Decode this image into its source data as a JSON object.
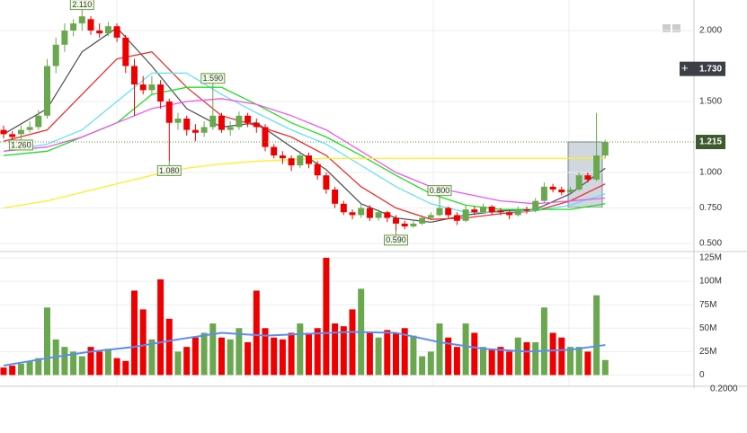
{
  "chart_data": {
    "type": "candlestick",
    "ylim": [
      0.456,
      2.215
    ],
    "yticks": [
      {
        "value": 0.5,
        "label": "0.500"
      },
      {
        "value": 0.75,
        "label": "0.750"
      },
      {
        "value": 1,
        "label": "1.000"
      },
      {
        "value": 1.5,
        "label": "1.500"
      },
      {
        "value": 2,
        "label": "2.000"
      }
    ],
    "grid": true,
    "up_color": "#6aa84f",
    "down_color": "#ee0000",
    "candles": [
      [
        1.3,
        1.33,
        1.24,
        1.27
      ],
      [
        1.27,
        1.29,
        1.22,
        1.25
      ],
      [
        1.27,
        1.33,
        1.26,
        1.3
      ],
      [
        1.3,
        1.36,
        1.28,
        1.32
      ],
      [
        1.32,
        1.44,
        1.3,
        1.4
      ],
      [
        1.4,
        1.8,
        1.38,
        1.75
      ],
      [
        1.75,
        1.95,
        1.7,
        1.9
      ],
      [
        1.9,
        2.05,
        1.85,
        2.0
      ],
      [
        2.0,
        2.08,
        1.96,
        2.05
      ],
      [
        2.05,
        2.11,
        2.0,
        2.1
      ],
      [
        2.08,
        2.1,
        1.97,
        2.0
      ],
      [
        2.0,
        2.05,
        1.95,
        1.98
      ],
      [
        1.98,
        2.06,
        1.96,
        2.03
      ],
      [
        2.03,
        2.05,
        1.92,
        1.95
      ],
      [
        1.95,
        1.97,
        1.7,
        1.75
      ],
      [
        1.75,
        1.8,
        1.4,
        1.62
      ],
      [
        1.62,
        1.68,
        1.55,
        1.58
      ],
      [
        1.58,
        1.68,
        1.55,
        1.62
      ],
      [
        1.62,
        1.65,
        1.45,
        1.5
      ],
      [
        1.5,
        1.52,
        1.08,
        1.35
      ],
      [
        1.35,
        1.42,
        1.3,
        1.38
      ],
      [
        1.38,
        1.4,
        1.26,
        1.3
      ],
      [
        1.3,
        1.34,
        1.22,
        1.28
      ],
      [
        1.28,
        1.36,
        1.25,
        1.32
      ],
      [
        1.32,
        1.59,
        1.3,
        1.4
      ],
      [
        1.4,
        1.42,
        1.28,
        1.3
      ],
      [
        1.3,
        1.36,
        1.26,
        1.32
      ],
      [
        1.32,
        1.43,
        1.3,
        1.4
      ],
      [
        1.4,
        1.42,
        1.32,
        1.35
      ],
      [
        1.35,
        1.38,
        1.28,
        1.32
      ],
      [
        1.32,
        1.34,
        1.15,
        1.18
      ],
      [
        1.18,
        1.2,
        1.1,
        1.12
      ],
      [
        1.12,
        1.15,
        1.06,
        1.1
      ],
      [
        1.1,
        1.12,
        1.01,
        1.05
      ],
      [
        1.05,
        1.15,
        1.03,
        1.12
      ],
      [
        1.12,
        1.14,
        1.03,
        1.06
      ],
      [
        1.06,
        1.08,
        0.95,
        0.98
      ],
      [
        0.98,
        1.0,
        0.85,
        0.88
      ],
      [
        0.88,
        0.9,
        0.75,
        0.78
      ],
      [
        0.78,
        0.8,
        0.7,
        0.72
      ],
      [
        0.72,
        0.74,
        0.67,
        0.7
      ],
      [
        0.7,
        0.78,
        0.68,
        0.75
      ],
      [
        0.75,
        0.77,
        0.66,
        0.68
      ],
      [
        0.68,
        0.74,
        0.66,
        0.72
      ],
      [
        0.72,
        0.73,
        0.65,
        0.68
      ],
      [
        0.68,
        0.7,
        0.59,
        0.64
      ],
      [
        0.64,
        0.66,
        0.6,
        0.62
      ],
      [
        0.62,
        0.66,
        0.61,
        0.64
      ],
      [
        0.64,
        0.7,
        0.63,
        0.68
      ],
      [
        0.68,
        0.72,
        0.67,
        0.7
      ],
      [
        0.7,
        0.8,
        0.69,
        0.75
      ],
      [
        0.75,
        0.76,
        0.68,
        0.7
      ],
      [
        0.7,
        0.72,
        0.63,
        0.66
      ],
      [
        0.66,
        0.77,
        0.65,
        0.74
      ],
      [
        0.74,
        0.76,
        0.7,
        0.72
      ],
      [
        0.72,
        0.78,
        0.71,
        0.76
      ],
      [
        0.76,
        0.77,
        0.7,
        0.72
      ],
      [
        0.73,
        0.75,
        0.7,
        0.72
      ],
      [
        0.72,
        0.73,
        0.67,
        0.7
      ],
      [
        0.7,
        0.76,
        0.69,
        0.74
      ],
      [
        0.74,
        0.76,
        0.71,
        0.73
      ],
      [
        0.73,
        0.82,
        0.72,
        0.8
      ],
      [
        0.8,
        0.93,
        0.79,
        0.9
      ],
      [
        0.9,
        0.92,
        0.86,
        0.88
      ],
      [
        0.88,
        0.9,
        0.84,
        0.86
      ],
      [
        0.86,
        0.9,
        0.85,
        0.88
      ],
      [
        0.88,
        1.0,
        0.87,
        0.98
      ],
      [
        0.98,
        1.0,
        0.93,
        0.95
      ],
      [
        0.95,
        1.42,
        0.94,
        1.12
      ],
      [
        1.12,
        1.23,
        1.1,
        1.215
      ]
    ],
    "ma_lines": [
      {
        "color": "#555555",
        "x": [
          0,
          5,
          9,
          13,
          17,
          21,
          25,
          29,
          33,
          37,
          41,
          45,
          49,
          53,
          57,
          61,
          65,
          69
        ],
        "values": [
          1.27,
          1.45,
          1.85,
          2.02,
          1.75,
          1.45,
          1.32,
          1.35,
          1.18,
          1.02,
          0.78,
          0.68,
          0.65,
          0.7,
          0.73,
          0.74,
          0.85,
          1.03
        ]
      },
      {
        "color": "#e83030",
        "x": [
          0,
          5,
          9,
          13,
          17,
          21,
          25,
          29,
          33,
          37,
          41,
          45,
          49,
          53,
          57,
          61,
          65,
          69
        ],
        "values": [
          1.22,
          1.3,
          1.55,
          1.8,
          1.85,
          1.6,
          1.4,
          1.33,
          1.25,
          1.12,
          0.9,
          0.75,
          0.67,
          0.68,
          0.71,
          0.73,
          0.8,
          0.92
        ]
      },
      {
        "color": "#66e0f0",
        "x": [
          0,
          5,
          9,
          13,
          17,
          21,
          25,
          29,
          33,
          37,
          41,
          45,
          49,
          53,
          57,
          61,
          65,
          69
        ],
        "values": [
          1.15,
          1.2,
          1.3,
          1.5,
          1.7,
          1.7,
          1.55,
          1.42,
          1.3,
          1.2,
          1.05,
          0.9,
          0.78,
          0.72,
          0.72,
          0.73,
          0.77,
          0.85
        ]
      },
      {
        "color": "#22dd22",
        "x": [
          0,
          5,
          9,
          13,
          17,
          21,
          25,
          29,
          33,
          37,
          41,
          45,
          49,
          53,
          57,
          61,
          65,
          69
        ],
        "values": [
          1.12,
          1.15,
          1.25,
          1.35,
          1.55,
          1.6,
          1.6,
          1.48,
          1.35,
          1.25,
          1.12,
          0.98,
          0.85,
          0.77,
          0.74,
          0.74,
          0.74,
          0.78
        ]
      },
      {
        "color": "#ee55ee",
        "x": [
          0,
          5,
          9,
          13,
          17,
          21,
          25,
          29,
          33,
          37,
          41,
          45,
          49,
          53,
          57,
          61,
          65,
          69
        ],
        "values": [
          1.15,
          1.18,
          1.25,
          1.35,
          1.45,
          1.5,
          1.52,
          1.48,
          1.4,
          1.3,
          1.15,
          1.0,
          0.9,
          0.85,
          0.8,
          0.78,
          0.8,
          0.82
        ]
      },
      {
        "color": "#ffee22",
        "x": [
          0,
          5,
          9,
          13,
          17,
          21,
          25,
          29,
          33,
          37,
          41,
          45,
          49,
          53,
          57,
          61,
          65,
          69
        ],
        "values": [
          0.75,
          0.8,
          0.86,
          0.92,
          0.98,
          1.03,
          1.06,
          1.08,
          1.09,
          1.1,
          1.1,
          1.1,
          1.1,
          1.1,
          1.1,
          1.1,
          1.1,
          1.1
        ]
      }
    ],
    "annotations": [
      {
        "index": 9,
        "value": 2.11,
        "label": "2.110",
        "place": "above"
      },
      {
        "index": 24,
        "value": 1.59,
        "label": "1.590",
        "place": "above"
      },
      {
        "index": 2,
        "value": 1.26,
        "label": "1.260",
        "place": "below"
      },
      {
        "index": 19,
        "value": 1.08,
        "label": "1.080",
        "place": "below"
      },
      {
        "index": 50,
        "value": 0.8,
        "label": "0.800",
        "place": "above"
      },
      {
        "index": 45,
        "value": 0.59,
        "label": "0.590",
        "place": "below"
      }
    ],
    "current_price": 1.215,
    "crosshair_price": {
      "value": 1.73,
      "label": "1.730"
    },
    "volume": {
      "ylim": [
        -12,
        128.8
      ],
      "yticks": [
        0,
        {
          "value": 25,
          "label": "25M"
        },
        {
          "value": 50,
          "label": "50M"
        },
        {
          "value": 75,
          "label": "75M"
        },
        {
          "value": 100,
          "label": "100M"
        },
        {
          "value": 125,
          "label": "125M"
        }
      ],
      "values": [
        8,
        10,
        12,
        15,
        18,
        72,
        38,
        30,
        25,
        20,
        30,
        25,
        28,
        18,
        15,
        90,
        70,
        38,
        102,
        60,
        25,
        30,
        40,
        45,
        55,
        40,
        38,
        50,
        35,
        90,
        50,
        40,
        38,
        45,
        55,
        45,
        50,
        125,
        55,
        52,
        70,
        92,
        45,
        40,
        48,
        45,
        50,
        42,
        20,
        25,
        55,
        40,
        30,
        55,
        45,
        30,
        28,
        30,
        25,
        40,
        35,
        35,
        72,
        45,
        40,
        30,
        30,
        25,
        85,
        16
      ],
      "ma": {
        "color": "#5b8def",
        "x": [
          0,
          5,
          10,
          15,
          20,
          25,
          30,
          35,
          40,
          45,
          50,
          55,
          60,
          65,
          69
        ],
        "values": [
          10,
          18,
          25,
          30,
          38,
          45,
          42,
          44,
          46,
          45,
          35,
          28,
          25,
          27,
          32
        ]
      }
    },
    "lower_axis_label": "0.2000"
  }
}
